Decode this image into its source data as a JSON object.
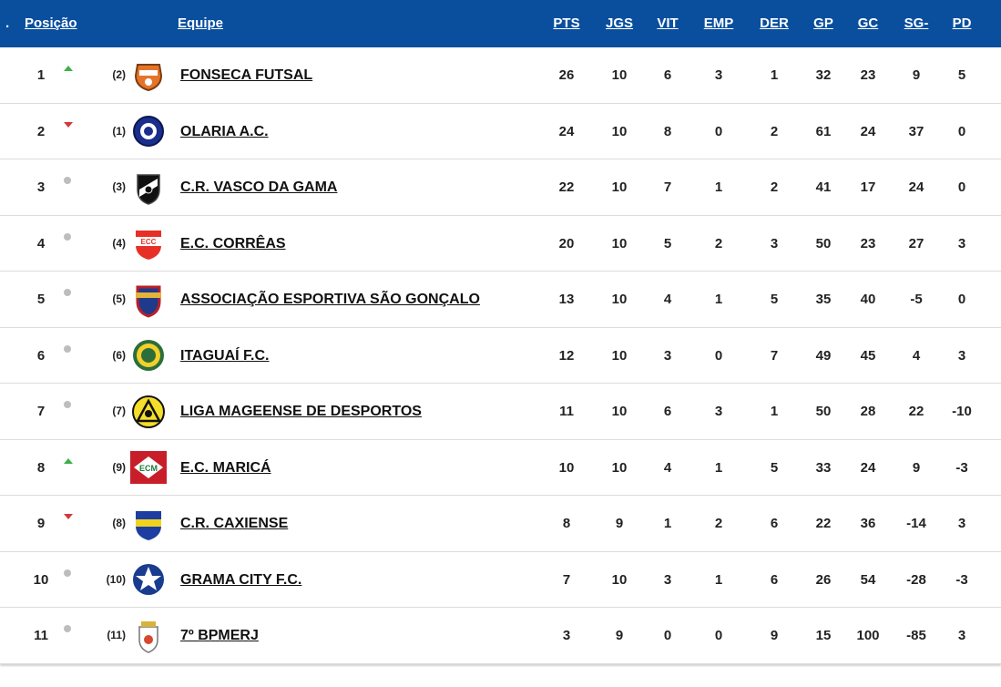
{
  "header": {
    "dot": ".",
    "posicao": "Posição",
    "equipe": "Equipe",
    "pts": "PTS",
    "jgs": "JGS",
    "vit": "VIT",
    "emp": "EMP",
    "der": "DER",
    "gp": "GP",
    "gc": "GC",
    "sg": "SG-",
    "pd": "PD"
  },
  "colors": {
    "header_bg": "#0a4f9e",
    "up": "#3cb04a",
    "down": "#d23a3a",
    "same": "#bdbdbd"
  },
  "rows": [
    {
      "pos": "1",
      "trend": "up",
      "prev": "(2)",
      "logo": "fonseca-futsal-crest",
      "team": "FONSECA FUTSAL",
      "pts": "26",
      "jgs": "10",
      "vit": "6",
      "emp": "3",
      "der": "1",
      "gp": "32",
      "gc": "23",
      "sg": "9",
      "pd": "5"
    },
    {
      "pos": "2",
      "trend": "down",
      "prev": "(1)",
      "logo": "olaria-crest",
      "team": "OLARIA A.C.",
      "pts": "24",
      "jgs": "10",
      "vit": "8",
      "emp": "0",
      "der": "2",
      "gp": "61",
      "gc": "24",
      "sg": "37",
      "pd": "0"
    },
    {
      "pos": "3",
      "trend": "same",
      "prev": "(3)",
      "logo": "vasco-crest",
      "team": "C.R. VASCO DA GAMA",
      "pts": "22",
      "jgs": "10",
      "vit": "7",
      "emp": "1",
      "der": "2",
      "gp": "41",
      "gc": "17",
      "sg": "24",
      "pd": "0"
    },
    {
      "pos": "4",
      "trend": "same",
      "prev": "(4)",
      "logo": "correas-crest",
      "team": "E.C. CORRÊAS",
      "pts": "20",
      "jgs": "10",
      "vit": "5",
      "emp": "2",
      "der": "3",
      "gp": "50",
      "gc": "23",
      "sg": "27",
      "pd": "3"
    },
    {
      "pos": "5",
      "trend": "same",
      "prev": "(5)",
      "logo": "sao-goncalo-crest",
      "team": "ASSOCIAÇÃO ESPORTIVA SÃO GONÇALO",
      "pts": "13",
      "jgs": "10",
      "vit": "4",
      "emp": "1",
      "der": "5",
      "gp": "35",
      "gc": "40",
      "sg": "-5",
      "pd": "0"
    },
    {
      "pos": "6",
      "trend": "same",
      "prev": "(6)",
      "logo": "itaguai-crest",
      "team": "ITAGUAÍ F.C.",
      "pts": "12",
      "jgs": "10",
      "vit": "3",
      "emp": "0",
      "der": "7",
      "gp": "49",
      "gc": "45",
      "sg": "4",
      "pd": "3"
    },
    {
      "pos": "7",
      "trend": "same",
      "prev": "(7)",
      "logo": "liga-mageense-crest",
      "team": "LIGA MAGEENSE DE DESPORTOS",
      "pts": "11",
      "jgs": "10",
      "vit": "6",
      "emp": "3",
      "der": "1",
      "gp": "50",
      "gc": "28",
      "sg": "22",
      "pd": "-10"
    },
    {
      "pos": "8",
      "trend": "up",
      "prev": "(9)",
      "logo": "marica-crest",
      "team": "E.C. MARICÁ",
      "pts": "10",
      "jgs": "10",
      "vit": "4",
      "emp": "1",
      "der": "5",
      "gp": "33",
      "gc": "24",
      "sg": "9",
      "pd": "-3"
    },
    {
      "pos": "9",
      "trend": "down",
      "prev": "(8)",
      "logo": "caxiense-crest",
      "team": "C.R. CAXIENSE",
      "pts": "8",
      "jgs": "9",
      "vit": "1",
      "emp": "2",
      "der": "6",
      "gp": "22",
      "gc": "36",
      "sg": "-14",
      "pd": "3"
    },
    {
      "pos": "10",
      "trend": "same",
      "prev": "(10)",
      "logo": "grama-city-crest",
      "team": "GRAMA CITY F.C.",
      "pts": "7",
      "jgs": "10",
      "vit": "3",
      "emp": "1",
      "der": "6",
      "gp": "26",
      "gc": "54",
      "sg": "-28",
      "pd": "-3"
    },
    {
      "pos": "11",
      "trend": "same",
      "prev": "(11)",
      "logo": "bpmerj-crest",
      "team": "7º BPMERJ",
      "pts": "3",
      "jgs": "9",
      "vit": "0",
      "emp": "0",
      "der": "9",
      "gp": "15",
      "gc": "100",
      "sg": "-85",
      "pd": "3"
    }
  ]
}
